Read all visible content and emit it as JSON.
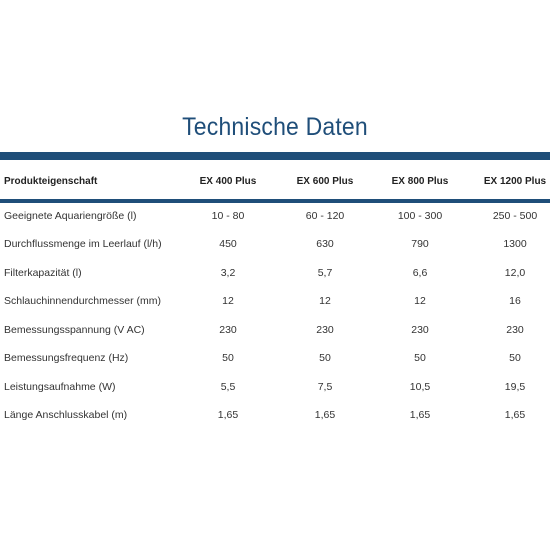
{
  "title": "Technische Daten",
  "columns": [
    "Produkteigenschaft",
    "EX 400 Plus",
    "EX 600 Plus",
    "EX 800 Plus",
    "EX 1200 Plus"
  ],
  "rows": [
    {
      "label": "Geeignete Aquariengröße (l)",
      "values": [
        "10 - 80",
        "60 - 120",
        "100 - 300",
        "250 - 500"
      ]
    },
    {
      "label": "Durchflussmenge im Leerlauf (l/h)",
      "values": [
        "450",
        "630",
        "790",
        "1300"
      ]
    },
    {
      "label": "Filterkapazität  (l)",
      "values": [
        "3,2",
        "5,7",
        "6,6",
        "12,0"
      ]
    },
    {
      "label": "Schlauchinnendurchmesser (mm)",
      "values": [
        "12",
        "12",
        "12",
        "16"
      ]
    },
    {
      "label": "Bemessungsspannung (V AC)",
      "values": [
        "230",
        "230",
        "230",
        "230"
      ]
    },
    {
      "label": "Bemessungsfrequenz  (Hz)",
      "values": [
        "50",
        "50",
        "50",
        "50"
      ]
    },
    {
      "label": "Leistungsaufnahme  (W)",
      "values": [
        "5,5",
        "7,5",
        "10,5",
        "19,5"
      ]
    },
    {
      "label": "Länge Anschlusskabel  (m)",
      "values": [
        "1,65",
        "1,65",
        "1,65",
        "1,65"
      ]
    }
  ],
  "colors": {
    "accent": "#1f4e79",
    "text": "#333333"
  }
}
